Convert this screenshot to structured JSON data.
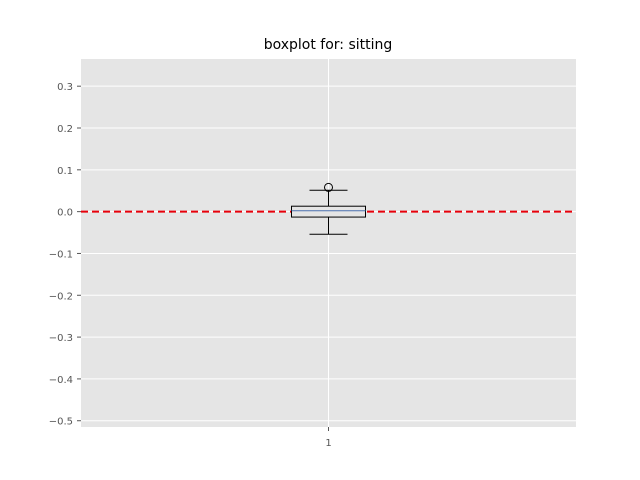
{
  "chart_data": {
    "type": "box",
    "title": "boxplot for: sitting",
    "xlabel": "",
    "ylabel": "",
    "categories": [
      "1"
    ],
    "ylim": [
      -0.515,
      0.365
    ],
    "yticks": [
      0.3,
      0.2,
      0.1,
      0.0,
      -0.1,
      -0.2,
      -0.3,
      -0.4,
      -0.5
    ],
    "ytick_labels": [
      "0.3",
      "0.2",
      "0.1",
      "0.0",
      "−0.1",
      "−0.2",
      "−0.3",
      "−0.4",
      "−0.5"
    ],
    "grid": true,
    "boxes": [
      {
        "category": "1",
        "whisker_low": -0.054,
        "q1": -0.013,
        "median": 0.002,
        "q3": 0.013,
        "whisker_high": 0.051,
        "outliers": [
          0.058
        ]
      }
    ],
    "reference_line": {
      "y": 0.0,
      "color": "#e8000b",
      "style": "dashed"
    },
    "colors": {
      "background": "#e5e5e5",
      "grid": "#ffffff",
      "box": "#000000",
      "median": "#4c72b0",
      "reference": "#e8000b"
    }
  }
}
